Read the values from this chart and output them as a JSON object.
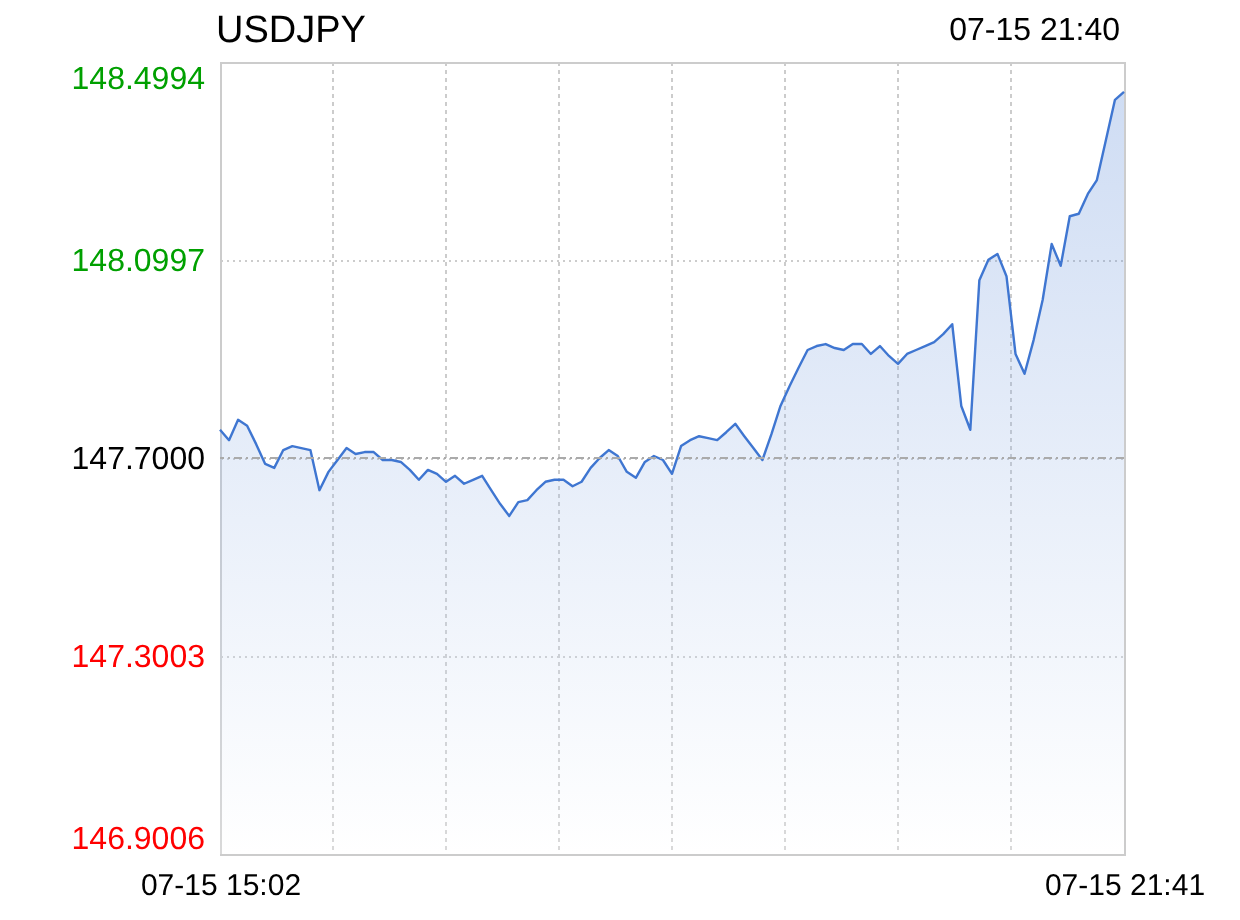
{
  "chart_data": {
    "type": "area",
    "title": "USDJPY",
    "annotations": [
      "07-15 21:40"
    ],
    "categories": [
      "07-15 15:02",
      null,
      null,
      null,
      null,
      null,
      null,
      null,
      null,
      null,
      null,
      null,
      null,
      null,
      null,
      null,
      null,
      null,
      null,
      null,
      null,
      null,
      null,
      null,
      null,
      null,
      null,
      null,
      null,
      null,
      null,
      null,
      null,
      null,
      null,
      null,
      null,
      null,
      null,
      null,
      null,
      null,
      null,
      null,
      null,
      null,
      null,
      null,
      null,
      null,
      null,
      null,
      null,
      null,
      null,
      null,
      null,
      null,
      null,
      null,
      null,
      null,
      null,
      null,
      null,
      null,
      null,
      null,
      null,
      null,
      null,
      null,
      null,
      null,
      null,
      null,
      null,
      null,
      null,
      null,
      null,
      null,
      null,
      null,
      null,
      null,
      null,
      null,
      null,
      null,
      null,
      null,
      null,
      null,
      null,
      null,
      null,
      null,
      null,
      null,
      "07-15 21:41"
    ],
    "series": [
      {
        "color": "#3f76d1",
        "values": [
          147.757,
          147.736,
          147.777,
          147.765,
          147.728,
          147.688,
          147.68,
          147.716,
          147.724,
          147.72,
          147.716,
          147.635,
          147.672,
          147.696,
          147.72,
          147.708,
          147.712,
          147.712,
          147.696,
          147.696,
          147.692,
          147.676,
          147.656,
          147.676,
          147.668,
          147.652,
          147.664,
          147.648,
          147.656,
          147.664,
          147.635,
          147.607,
          147.583,
          147.611,
          147.615,
          147.635,
          147.652,
          147.656,
          147.656,
          147.643,
          147.652,
          147.68,
          147.7,
          147.716,
          147.704,
          147.672,
          147.66,
          147.692,
          147.704,
          147.696,
          147.668,
          147.724,
          147.736,
          147.744,
          147.74,
          147.736,
          147.752,
          147.769,
          147.744,
          147.72,
          147.696,
          147.748,
          147.805,
          147.845,
          147.882,
          147.918,
          147.926,
          147.93,
          147.922,
          147.918,
          147.93,
          147.93,
          147.91,
          147.926,
          147.906,
          147.89,
          147.91,
          147.918,
          147.926,
          147.934,
          147.95,
          147.97,
          147.805,
          147.757,
          148.059,
          148.1,
          148.112,
          148.067,
          147.91,
          147.87,
          147.938,
          148.019,
          148.132,
          148.088,
          148.188,
          148.193,
          148.233,
          148.261,
          148.342,
          148.423,
          148.439
        ]
      }
    ],
    "ylim": [
      146.9006,
      148.4994
    ],
    "yticks": [
      {
        "value": 146.9006,
        "label": "146.9006"
      },
      {
        "value": 147.3003,
        "label": "147.3003"
      },
      {
        "value": 147.7,
        "label": "147.7000"
      },
      {
        "value": 148.0997,
        "label": "148.0997"
      },
      {
        "value": 148.4994,
        "label": "148.4994"
      }
    ],
    "ref_lines": [
      {
        "axis": "y",
        "value": 147.7,
        "color": "#aaaaaa",
        "line_style": "dashed"
      }
    ],
    "grid": true,
    "marker": "none",
    "line_style": "solid"
  }
}
